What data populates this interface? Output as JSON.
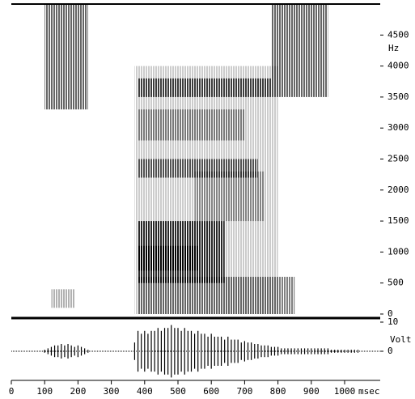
{
  "chart_data": [
    {
      "type": "spectrogram",
      "ylabel": "Hz",
      "xlim": [
        0,
        1100
      ],
      "ylim": [
        0,
        5000
      ],
      "yticks": [
        0,
        500,
        1000,
        1500,
        2000,
        2500,
        3000,
        3500,
        4000,
        4500
      ],
      "regions": [
        {
          "x": [
            100,
            230
          ],
          "y": [
            3300,
            5000
          ],
          "level": 0.6
        },
        {
          "x": [
            120,
            190
          ],
          "y": [
            100,
            400
          ],
          "level": 0.3
        },
        {
          "x": [
            370,
            800
          ],
          "y": [
            0,
            4000
          ],
          "level": 0.2
        },
        {
          "x": [
            380,
            850
          ],
          "y": [
            0,
            600
          ],
          "level": 0.5
        },
        {
          "x": [
            380,
            640
          ],
          "y": [
            500,
            1500
          ],
          "level": 0.8
        },
        {
          "x": [
            380,
            560
          ],
          "y": [
            700,
            1100
          ],
          "level": 0.9
        },
        {
          "x": [
            550,
            760
          ],
          "y": [
            1500,
            2300
          ],
          "level": 0.35
        },
        {
          "x": [
            380,
            740
          ],
          "y": [
            2200,
            2500
          ],
          "level": 0.6
        },
        {
          "x": [
            380,
            700
          ],
          "y": [
            2800,
            3300
          ],
          "level": 0.4
        },
        {
          "x": [
            380,
            780
          ],
          "y": [
            3500,
            3800
          ],
          "level": 0.7
        },
        {
          "x": [
            780,
            950
          ],
          "y": [
            3500,
            5000
          ],
          "level": 0.6
        }
      ]
    },
    {
      "type": "waveform",
      "ylabel": "Volt",
      "xlabel": "msec",
      "xlim": [
        0,
        1100
      ],
      "xticks": [
        0,
        100,
        200,
        300,
        400,
        500,
        600,
        700,
        800,
        900,
        1000
      ],
      "ylim": [
        -10,
        10
      ],
      "yticks": [
        0,
        10
      ],
      "x": [
        100,
        110,
        120,
        130,
        140,
        150,
        160,
        170,
        180,
        190,
        200,
        210,
        220,
        230,
        370,
        380,
        390,
        400,
        410,
        420,
        430,
        440,
        450,
        460,
        470,
        480,
        490,
        500,
        510,
        520,
        530,
        540,
        550,
        560,
        570,
        580,
        590,
        600,
        610,
        620,
        630,
        640,
        650,
        660,
        670,
        680,
        690,
        700,
        710,
        720,
        730,
        740,
        750,
        760,
        770,
        780,
        790,
        800,
        810,
        820,
        830,
        840,
        850,
        860,
        870,
        880,
        890,
        900,
        910,
        920,
        930,
        940,
        950,
        960,
        970,
        980,
        990,
        1000,
        1010,
        1020,
        1030,
        1040
      ],
      "values": [
        0.5,
        1,
        1.5,
        2,
        2,
        2.5,
        2,
        2.5,
        2,
        1.5,
        2,
        1.5,
        1,
        0.5,
        3,
        7,
        6,
        7,
        6,
        7,
        7,
        8,
        7,
        8,
        8,
        9,
        8,
        8,
        7,
        8,
        7,
        7,
        6,
        7,
        6,
        6,
        5,
        6,
        5,
        5,
        5,
        4,
        5,
        4,
        4,
        4,
        3,
        3.5,
        3,
        3,
        2.5,
        2.5,
        2,
        2,
        2,
        1.5,
        1.5,
        1.5,
        1,
        1,
        1,
        1,
        1,
        1,
        1,
        1,
        1,
        1,
        1,
        1,
        1,
        1,
        1,
        0.5,
        0.5,
        0.5,
        0.5,
        0.5,
        0.5,
        0.5,
        0.5,
        0.5
      ]
    }
  ]
}
